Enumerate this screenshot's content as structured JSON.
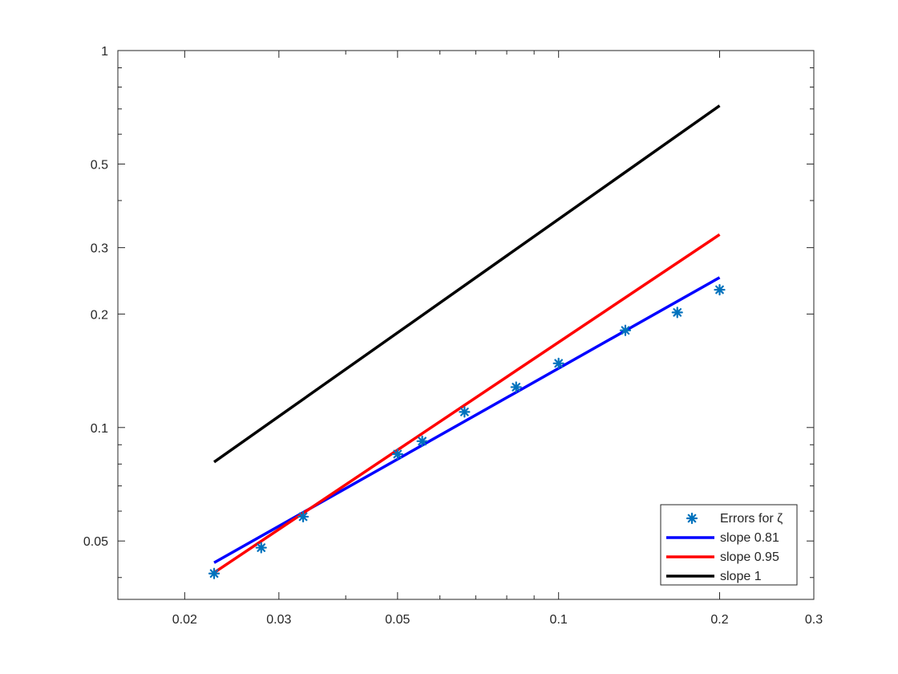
{
  "chart_data": {
    "type": "line",
    "title": "",
    "xlabel": "",
    "ylabel": "",
    "xscale": "log",
    "yscale": "log",
    "xlim": [
      0.015,
      0.3
    ],
    "ylim": [
      0.035,
      1
    ],
    "grid": false,
    "legend_position": "bottom-right",
    "x_ticks": [
      {
        "value": 0.02,
        "label": "0.02"
      },
      {
        "value": 0.03,
        "label": "0.03"
      },
      {
        "value": 0.05,
        "label": "0.05"
      },
      {
        "value": 0.1,
        "label": "0.1"
      },
      {
        "value": 0.2,
        "label": "0.2"
      },
      {
        "value": 0.3,
        "label": "0.3"
      }
    ],
    "y_ticks": [
      {
        "value": 0.05,
        "label": "0.05"
      },
      {
        "value": 0.1,
        "label": "0.1"
      },
      {
        "value": 0.2,
        "label": "0.2"
      },
      {
        "value": 0.3,
        "label": "0.3"
      },
      {
        "value": 0.5,
        "label": "0.5"
      },
      {
        "value": 1,
        "label": "1"
      }
    ],
    "series": [
      {
        "name": "Errors for ζ",
        "kind": "scatter",
        "marker": "asterisk",
        "color": "#0072BD",
        "x": [
          0.0227,
          0.0278,
          0.0333,
          0.05,
          0.0556,
          0.0667,
          0.0833,
          0.1,
          0.1333,
          0.1667,
          0.2
        ],
        "y": [
          0.041,
          0.048,
          0.058,
          0.085,
          0.092,
          0.11,
          0.128,
          0.148,
          0.181,
          0.202,
          0.232
        ]
      },
      {
        "name": "slope 0.81",
        "kind": "line",
        "color": "#0000FF",
        "x": [
          0.0227,
          0.2
        ],
        "y": [
          0.0438,
          0.25
        ]
      },
      {
        "name": "slope 0.95",
        "kind": "line",
        "color": "#FF0000",
        "x": [
          0.0227,
          0.2
        ],
        "y": [
          0.0412,
          0.325
        ]
      },
      {
        "name": "slope 1",
        "kind": "line",
        "color": "#000000",
        "x": [
          0.0227,
          0.2
        ],
        "y": [
          0.081,
          0.714
        ]
      }
    ]
  }
}
